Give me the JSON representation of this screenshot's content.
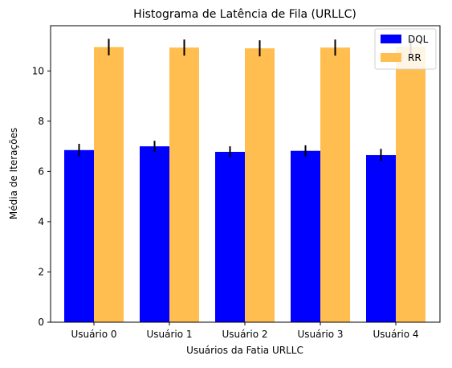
{
  "chart_data": {
    "type": "bar",
    "title": "Histograma de Latência de Fila (URLLC)",
    "xlabel": "Usuários da Fatia URLLC",
    "ylabel": "Média de Iterações",
    "categories": [
      "Usuário 0",
      "Usuário 1",
      "Usuário 2",
      "Usuário 3",
      "Usuário 4"
    ],
    "series": [
      {
        "name": "DQL",
        "color": "#0000ff",
        "values": [
          6.85,
          7.0,
          6.78,
          6.82,
          6.65
        ],
        "errors": [
          0.25,
          0.22,
          0.22,
          0.22,
          0.25
        ]
      },
      {
        "name": "RR",
        "color": "#ffbe4f",
        "values": [
          10.95,
          10.93,
          10.9,
          10.93,
          10.97
        ],
        "errors": [
          0.33,
          0.32,
          0.32,
          0.32,
          0.32
        ]
      }
    ],
    "ylim": [
      0,
      11.8
    ],
    "yticks": [
      0,
      2,
      4,
      6,
      8,
      10
    ],
    "legend_position": "top-right",
    "grid": false
  }
}
